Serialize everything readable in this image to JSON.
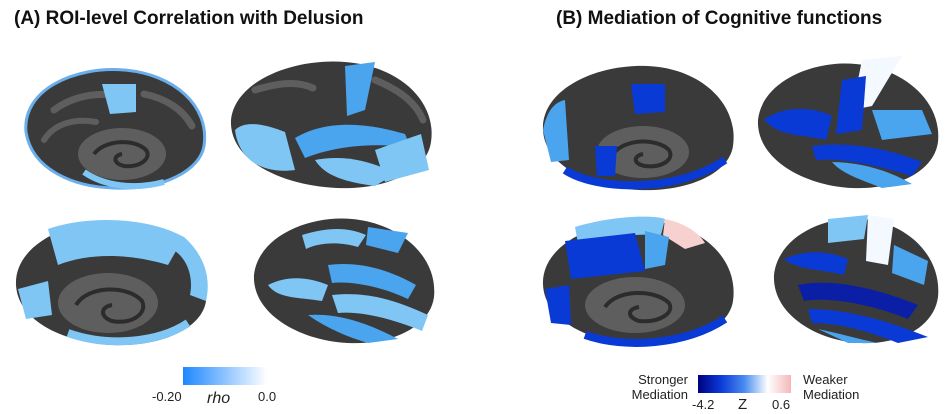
{
  "panel_a": {
    "title": "(A) ROI-level Correlation with Delusion",
    "colorbar": {
      "min_label": "-0.20",
      "max_label": "0.0",
      "variable": "rho",
      "colors": [
        "#1e88ff",
        "#ffffff"
      ]
    }
  },
  "panel_b": {
    "title": "(B) Mediation of Cognitive functions",
    "colorbar": {
      "left_label_1": "Stronger",
      "left_label_2": "Mediation",
      "min_label": "-4.2",
      "variable": "Z",
      "max_label": "0.6",
      "right_label_1": "Weaker",
      "right_label_2": "Mediation",
      "colors": [
        "#00007f",
        "#0b3bd8",
        "#4a8cf0",
        "#ffffff",
        "#f4b8b8"
      ]
    }
  },
  "brain_colors": {
    "cortex_dark": "#3a3a3a",
    "cortex_gyri": "#5e5e5e",
    "cortex_sulci": "#2c2c2c",
    "light_blue": "#7fc6f5",
    "mid_blue": "#4aa4ee",
    "dark_blue": "#0a3ad6",
    "navy": "#0a1fa6",
    "white": "#f4f8ff",
    "pink": "#f7d0d0"
  }
}
